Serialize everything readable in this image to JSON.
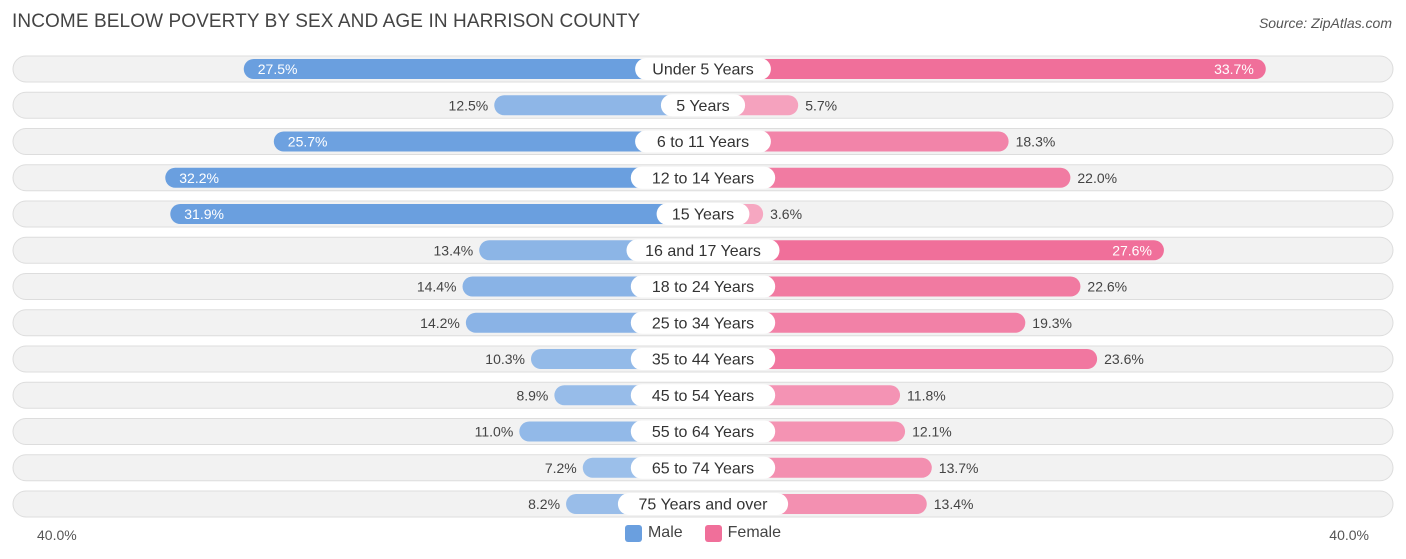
{
  "chart_data": {
    "type": "bar",
    "orientation": "horizontal-diverging",
    "title": "INCOME BELOW POVERTY BY SEX AND AGE IN HARRISON COUNTY",
    "source": "Source: ZipAtlas.com",
    "categories": [
      "Under 5 Years",
      "5 Years",
      "6 to 11 Years",
      "12 to 14 Years",
      "15 Years",
      "16 and 17 Years",
      "18 to 24 Years",
      "25 to 34 Years",
      "35 to 44 Years",
      "45 to 54 Years",
      "55 to 64 Years",
      "65 to 74 Years",
      "75 Years and over"
    ],
    "series": [
      {
        "name": "Male",
        "color": "#6a9fdf",
        "values": [
          27.5,
          12.5,
          25.7,
          32.2,
          31.9,
          13.4,
          14.4,
          14.2,
          10.3,
          8.9,
          11.0,
          7.2,
          8.2
        ],
        "labels": [
          "27.5%",
          "12.5%",
          "25.7%",
          "32.2%",
          "31.9%",
          "13.4%",
          "14.4%",
          "14.2%",
          "10.3%",
          "8.9%",
          "11.0%",
          "7.2%",
          "8.2%"
        ]
      },
      {
        "name": "Female",
        "color": "#f06f9a",
        "values": [
          33.7,
          5.7,
          18.3,
          22.0,
          3.6,
          27.6,
          22.6,
          19.3,
          23.6,
          11.8,
          12.1,
          13.7,
          13.4
        ],
        "labels": [
          "33.7%",
          "5.7%",
          "18.3%",
          "22.0%",
          "3.6%",
          "27.6%",
          "22.6%",
          "19.3%",
          "23.6%",
          "11.8%",
          "12.1%",
          "13.7%",
          "13.4%"
        ]
      }
    ],
    "xlim": [
      0,
      40
    ],
    "axis_left_label": "40.0%",
    "axis_right_label": "40.0%",
    "legend_position": "bottom-center"
  }
}
